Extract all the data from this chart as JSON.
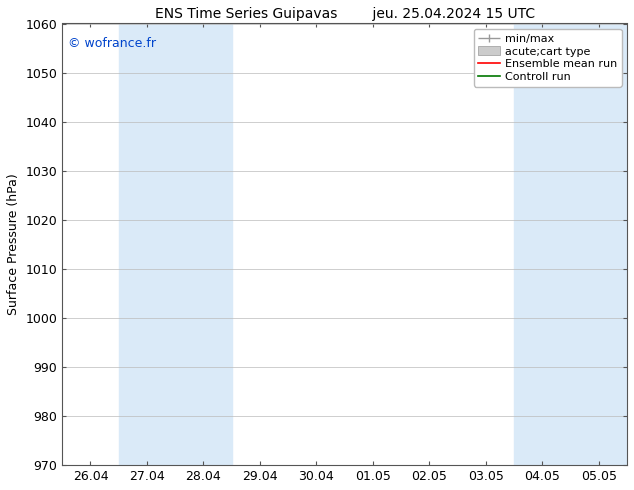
{
  "title_left": "ENS Time Series Guipavas",
  "title_right": "jeu. 25.04.2024 15 UTC",
  "ylabel": "Surface Pressure (hPa)",
  "ylim": [
    970,
    1060
  ],
  "yticks": [
    970,
    980,
    990,
    1000,
    1010,
    1020,
    1030,
    1040,
    1050,
    1060
  ],
  "xtick_labels": [
    "26.04",
    "27.04",
    "28.04",
    "29.04",
    "30.04",
    "01.05",
    "02.05",
    "03.05",
    "04.05",
    "05.05"
  ],
  "xtick_positions": [
    0,
    1,
    2,
    3,
    4,
    5,
    6,
    7,
    8,
    9
  ],
  "xlim": [
    -0.5,
    9.5
  ],
  "shaded_bands": [
    {
      "xstart": 0.5,
      "xend": 2.5
    },
    {
      "xstart": 7.5,
      "xend": 9.5
    }
  ],
  "shaded_color": "#daeaf8",
  "watermark": "© wofrance.fr",
  "watermark_color": "#0044cc",
  "legend_entries": [
    {
      "label": "min/max"
    },
    {
      "label": "acute;cart type"
    },
    {
      "label": "Ensemble mean run"
    },
    {
      "label": "Controll run"
    }
  ],
  "bg_color": "#ffffff",
  "plot_bg_color": "#ffffff",
  "border_color": "#555555",
  "tick_color": "#555555",
  "grid_color": "#bbbbbb",
  "font_size": 9,
  "ylabel_font_size": 9,
  "title_font_size": 10,
  "legend_font_size": 8,
  "watermark_font_size": 9
}
